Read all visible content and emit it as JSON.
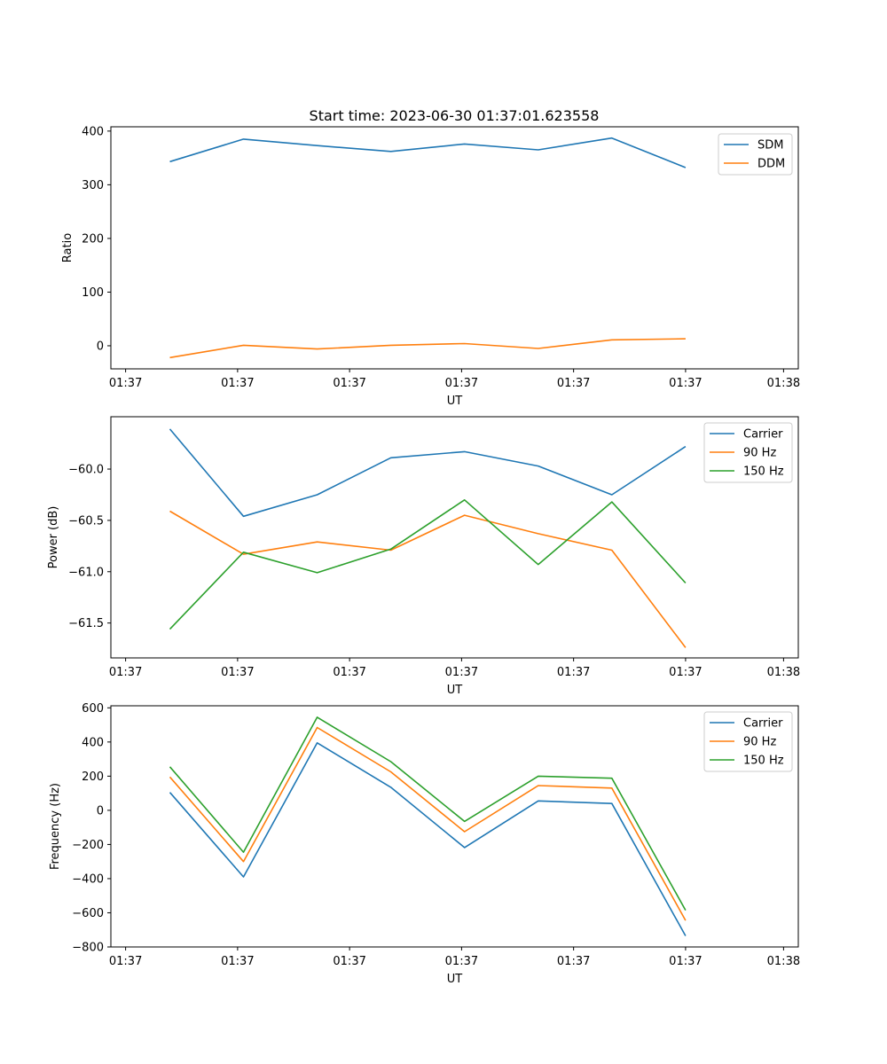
{
  "title": "Start time: 2023-06-30 01:37:01.623558",
  "chart_data": [
    {
      "type": "line",
      "title": "Start time: 2023-06-30 01:37:01.623558",
      "xlabel": "UT",
      "ylabel": "Ratio",
      "x_tick_labels": [
        "01:37",
        "01:37",
        "01:37",
        "01:37",
        "01:37",
        "01:37",
        "01:38"
      ],
      "y_ticks": [
        0,
        100,
        200,
        300,
        400
      ],
      "y_tick_labels": [
        "0",
        "100",
        "200",
        "300",
        "400"
      ],
      "ylim": [
        -43,
        408
      ],
      "legend_position": "top-right",
      "grid": false,
      "x": [
        1,
        2,
        3,
        4,
        5,
        6,
        7,
        8
      ],
      "series": [
        {
          "name": "SDM",
          "color": "#1f77b4",
          "values": [
            343,
            385,
            373,
            362,
            376,
            365,
            387,
            332
          ]
        },
        {
          "name": "DDM",
          "color": "#ff7f0e",
          "values": [
            -22,
            1,
            -6,
            1,
            4,
            -5,
            11,
            13
          ]
        }
      ]
    },
    {
      "type": "line",
      "title": "",
      "xlabel": "UT",
      "ylabel": "Power (dB)",
      "x_tick_labels": [
        "01:37",
        "01:37",
        "01:37",
        "01:37",
        "01:37",
        "01:37",
        "01:38"
      ],
      "y_ticks": [
        -61.5,
        -61.0,
        -60.5,
        -60.0
      ],
      "y_tick_labels": [
        "−61.5",
        "−61.0",
        "−60.5",
        "−60.0"
      ],
      "ylim": [
        -61.84,
        -59.49
      ],
      "legend_position": "top-right",
      "grid": false,
      "x": [
        1,
        2,
        3,
        4,
        5,
        6,
        7,
        8
      ],
      "series": [
        {
          "name": "Carrier",
          "color": "#1f77b4",
          "values": [
            -59.61,
            -60.46,
            -60.25,
            -59.89,
            -59.83,
            -59.97,
            -60.25,
            -59.78
          ]
        },
        {
          "name": "90 Hz",
          "color": "#ff7f0e",
          "values": [
            -60.41,
            -60.83,
            -60.71,
            -60.79,
            -60.45,
            -60.63,
            -60.79,
            -61.74
          ]
        },
        {
          "name": "150 Hz",
          "color": "#2ca02c",
          "values": [
            -61.56,
            -60.81,
            -61.01,
            -60.78,
            -60.3,
            -60.93,
            -60.32,
            -61.11
          ]
        }
      ]
    },
    {
      "type": "line",
      "title": "",
      "xlabel": "UT",
      "ylabel": "Frequency (Hz)",
      "x_tick_labels": [
        "01:37",
        "01:37",
        "01:37",
        "01:37",
        "01:37",
        "01:37",
        "01:38"
      ],
      "y_ticks": [
        -800,
        -600,
        -400,
        -200,
        0,
        200,
        400,
        600
      ],
      "y_tick_labels": [
        "−800",
        "−600",
        "−400",
        "−200",
        "0",
        "200",
        "400",
        "600"
      ],
      "ylim": [
        -800,
        612
      ],
      "legend_position": "top-right",
      "grid": false,
      "x": [
        1,
        2,
        3,
        4,
        5,
        6,
        7,
        8
      ],
      "series": [
        {
          "name": "Carrier",
          "color": "#1f77b4",
          "values": [
            105,
            -390,
            395,
            135,
            -218,
            55,
            40,
            -735
          ]
        },
        {
          "name": "90 Hz",
          "color": "#ff7f0e",
          "values": [
            195,
            -300,
            485,
            225,
            -125,
            145,
            130,
            -645
          ]
        },
        {
          "name": "150 Hz",
          "color": "#2ca02c",
          "values": [
            255,
            -245,
            545,
            285,
            -65,
            200,
            188,
            -585
          ]
        }
      ]
    }
  ]
}
